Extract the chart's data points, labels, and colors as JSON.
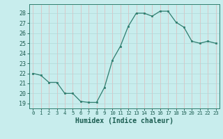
{
  "x": [
    0,
    1,
    2,
    3,
    4,
    5,
    6,
    7,
    8,
    9,
    10,
    11,
    12,
    13,
    14,
    15,
    16,
    17,
    18,
    19,
    20,
    21,
    22,
    23
  ],
  "y": [
    22,
    21.8,
    21.1,
    21.1,
    20.0,
    20.0,
    19.2,
    19.1,
    19.1,
    20.6,
    23.3,
    24.7,
    26.7,
    28.0,
    28.0,
    27.7,
    28.2,
    28.2,
    27.1,
    26.6,
    25.2,
    25.0,
    25.2,
    25.0
  ],
  "xlim": [
    -0.5,
    23.5
  ],
  "ylim": [
    18.5,
    28.9
  ],
  "yticks": [
    19,
    20,
    21,
    22,
    23,
    24,
    25,
    26,
    27,
    28
  ],
  "xticks": [
    0,
    1,
    2,
    3,
    4,
    5,
    6,
    7,
    8,
    9,
    10,
    11,
    12,
    13,
    14,
    15,
    16,
    17,
    18,
    19,
    20,
    21,
    22,
    23
  ],
  "xlabel": "Humidex (Indice chaleur)",
  "line_color": "#2e7d6e",
  "marker_color": "#2e7d6e",
  "bg_color": "#c8eded",
  "grid_color": "#b0d8d8",
  "axis_color": "#2e7d6e",
  "tick_color": "#1a5c50",
  "label_color": "#1a5c50"
}
